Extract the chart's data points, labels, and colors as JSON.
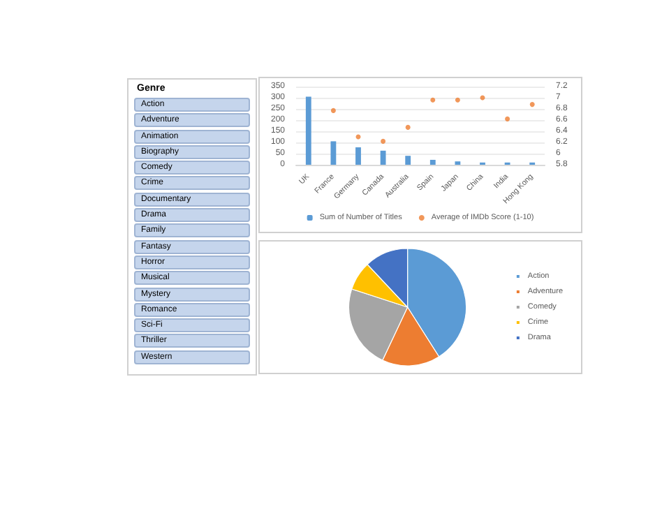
{
  "chart_data": [
    {
      "type": "other",
      "title": "Genre",
      "categories": [
        "Action",
        "Adventure",
        "Animation",
        "Biography",
        "Comedy",
        "Crime",
        "Documentary",
        "Drama",
        "Family",
        "Fantasy",
        "Horror",
        "Musical",
        "Mystery",
        "Romance",
        "Sci-Fi",
        "Thriller",
        "Western"
      ]
    },
    {
      "type": "bar",
      "categories": [
        "UK",
        "France",
        "Germany",
        "Canada",
        "Australia",
        "Spain",
        "Japan",
        "China",
        "India",
        "Hong Kong"
      ],
      "series": [
        {
          "name": "Sum of Number of Titles",
          "color": "#5b9bd5",
          "values": [
            305,
            105,
            78,
            63,
            40,
            22,
            15,
            10,
            10,
            10
          ]
        },
        {
          "name": "Average of IMDb Score (1-10)",
          "type": "scatter",
          "axis": "y2",
          "color": "#ed7d31",
          "values": [
            null,
            6.77,
            6.3,
            6.22,
            6.47,
            6.96,
            6.96,
            7.0,
            6.62,
            6.88
          ]
        }
      ],
      "ylim": [
        0,
        350
      ],
      "yticks": [
        0,
        50,
        100,
        150,
        200,
        250,
        300,
        350
      ],
      "y2lim": [
        5.8,
        7.2
      ],
      "y2ticks": [
        5.8,
        6,
        6.2,
        6.4,
        6.6,
        6.8,
        7,
        7.2
      ],
      "grid": "y",
      "legend": "bottom",
      "marker": "circle"
    },
    {
      "type": "pie",
      "categories": [
        "Action",
        "Adventure",
        "Comedy",
        "Crime",
        "Drama"
      ],
      "values": [
        41,
        16,
        23,
        8,
        12
      ],
      "colors": [
        "#5b9bd5",
        "#ed7d31",
        "#a5a5a5",
        "#ffc000",
        "#4472c4"
      ],
      "legend": "right"
    }
  ]
}
